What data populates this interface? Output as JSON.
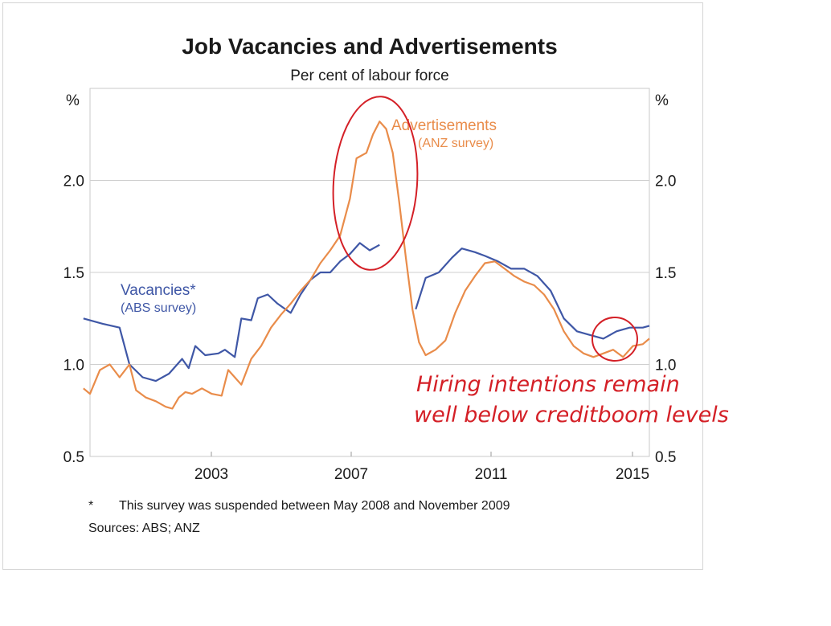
{
  "chart_data": {
    "type": "line",
    "title": "Job Vacancies and Advertisements",
    "subtitle": "Per cent of labour force",
    "left_axis_unit": "%",
    "right_axis_unit": "%",
    "ylim": [
      0.5,
      2.5
    ],
    "y_ticks": [
      "0.5",
      "1.0",
      "1.5",
      "2.0"
    ],
    "xlim": [
      1999.8,
      2015.3
    ],
    "x_ticks": [
      {
        "value": 2003,
        "label": "2003"
      },
      {
        "value": 2007,
        "label": "2007"
      },
      {
        "value": 2011,
        "label": "2011"
      },
      {
        "value": 2015,
        "label": "2015"
      }
    ],
    "grid": "horizontal",
    "series": [
      {
        "name": "Vacancies*",
        "source": "(ABS survey)",
        "color": "#3f57a6",
        "segments": [
          [
            [
              1999.8,
              1.25
            ],
            [
              2000.4,
              1.22
            ],
            [
              2000.9,
              1.2
            ],
            [
              2001.2,
              1.0
            ],
            [
              2001.6,
              0.93
            ],
            [
              2002.0,
              0.91
            ],
            [
              2002.4,
              0.95
            ],
            [
              2002.8,
              1.03
            ],
            [
              2003.0,
              0.98
            ],
            [
              2003.2,
              1.1
            ],
            [
              2003.5,
              1.05
            ],
            [
              2003.9,
              1.06
            ],
            [
              2004.1,
              1.08
            ],
            [
              2004.4,
              1.04
            ],
            [
              2004.6,
              1.25
            ],
            [
              2004.9,
              1.24
            ],
            [
              2005.1,
              1.36
            ],
            [
              2005.4,
              1.38
            ],
            [
              2005.7,
              1.33
            ],
            [
              2006.1,
              1.28
            ],
            [
              2006.4,
              1.38
            ],
            [
              2006.7,
              1.46
            ],
            [
              2007.0,
              1.5
            ],
            [
              2007.3,
              1.5
            ],
            [
              2007.6,
              1.56
            ],
            [
              2007.9,
              1.6
            ],
            [
              2008.2,
              1.66
            ],
            [
              2008.5,
              1.62
            ],
            [
              2008.8,
              1.65
            ]
          ],
          [
            [
              2009.9,
              1.3
            ],
            [
              2010.2,
              1.47
            ],
            [
              2010.6,
              1.5
            ],
            [
              2011.0,
              1.58
            ],
            [
              2011.3,
              1.63
            ],
            [
              2011.7,
              1.61
            ],
            [
              2012.0,
              1.59
            ],
            [
              2012.4,
              1.56
            ],
            [
              2012.8,
              1.52
            ],
            [
              2013.2,
              1.52
            ],
            [
              2013.6,
              1.48
            ],
            [
              2014.0,
              1.4
            ],
            [
              2014.4,
              1.25
            ],
            [
              2014.8,
              1.18
            ],
            [
              2015.2,
              1.16
            ],
            [
              2015.6,
              1.14
            ],
            [
              2016.0,
              1.18
            ],
            [
              2016.4,
              1.2
            ],
            [
              2016.8,
              1.2
            ],
            [
              2017.0,
              1.21
            ]
          ]
        ]
      },
      {
        "name": "Advertisements",
        "source": "(ANZ survey)",
        "color": "#e98c4a",
        "segments": [
          [
            [
              1999.8,
              0.87
            ],
            [
              2000.0,
              0.84
            ],
            [
              2000.3,
              0.97
            ],
            [
              2000.6,
              1.0
            ],
            [
              2000.9,
              0.93
            ],
            [
              2001.2,
              1.0
            ],
            [
              2001.4,
              0.86
            ],
            [
              2001.7,
              0.82
            ],
            [
              2002.0,
              0.8
            ],
            [
              2002.3,
              0.77
            ],
            [
              2002.5,
              0.76
            ],
            [
              2002.7,
              0.82
            ],
            [
              2002.9,
              0.85
            ],
            [
              2003.1,
              0.84
            ],
            [
              2003.4,
              0.87
            ],
            [
              2003.7,
              0.84
            ],
            [
              2004.0,
              0.83
            ],
            [
              2004.2,
              0.97
            ],
            [
              2004.4,
              0.93
            ],
            [
              2004.6,
              0.89
            ],
            [
              2004.9,
              1.03
            ],
            [
              2005.2,
              1.1
            ],
            [
              2005.5,
              1.2
            ],
            [
              2005.8,
              1.27
            ],
            [
              2006.1,
              1.33
            ],
            [
              2006.4,
              1.4
            ],
            [
              2006.7,
              1.46
            ],
            [
              2007.0,
              1.55
            ],
            [
              2007.3,
              1.62
            ],
            [
              2007.6,
              1.7
            ],
            [
              2007.9,
              1.9
            ],
            [
              2008.1,
              2.12
            ],
            [
              2008.4,
              2.15
            ],
            [
              2008.6,
              2.25
            ],
            [
              2008.8,
              2.32
            ],
            [
              2009.0,
              2.28
            ],
            [
              2009.2,
              2.15
            ],
            [
              2009.4,
              1.88
            ],
            [
              2009.6,
              1.58
            ],
            [
              2009.8,
              1.3
            ],
            [
              2010.0,
              1.12
            ],
            [
              2010.2,
              1.05
            ],
            [
              2010.5,
              1.08
            ],
            [
              2010.8,
              1.13
            ],
            [
              2011.1,
              1.28
            ],
            [
              2011.4,
              1.4
            ],
            [
              2011.7,
              1.48
            ],
            [
              2012.0,
              1.55
            ],
            [
              2012.3,
              1.56
            ],
            [
              2012.6,
              1.52
            ],
            [
              2012.9,
              1.48
            ],
            [
              2013.2,
              1.45
            ],
            [
              2013.5,
              1.43
            ],
            [
              2013.8,
              1.38
            ],
            [
              2014.1,
              1.3
            ],
            [
              2014.4,
              1.18
            ],
            [
              2014.7,
              1.1
            ],
            [
              2015.0,
              1.06
            ],
            [
              2015.3,
              1.04
            ],
            [
              2015.6,
              1.06
            ],
            [
              2015.9,
              1.08
            ],
            [
              2016.2,
              1.04
            ],
            [
              2016.5,
              1.1
            ],
            [
              2016.8,
              1.11
            ],
            [
              2017.0,
              1.14
            ]
          ]
        ]
      }
    ],
    "footnote_marker": "*",
    "footnote": "This survey was suspended between May 2008 and November 2009",
    "sources": "Sources:  ABS; ANZ"
  },
  "annotations": {
    "handwritten_line1": "Hiring intentions remain",
    "handwritten_line2": "well below creditboom levels",
    "color": "#d42027"
  }
}
